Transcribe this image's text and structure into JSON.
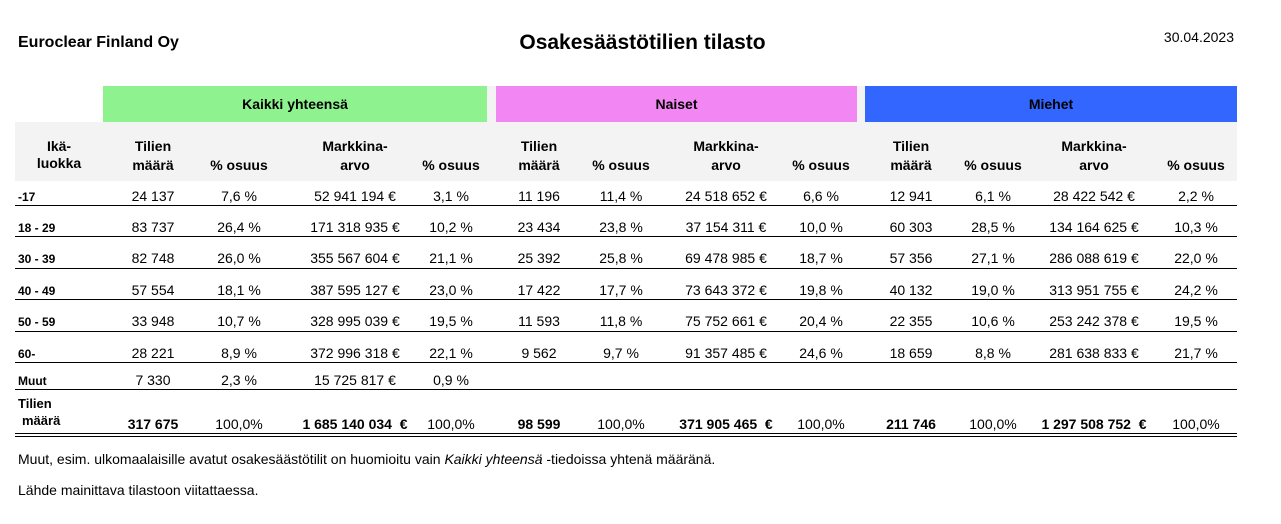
{
  "header": {
    "company": "Euroclear Finland Oy",
    "title": "Osakesäästötilien tilasto",
    "date": "30.04.2023"
  },
  "groups": {
    "all": "Kaikki yhteensä",
    "women": "Naiset",
    "men": "Miehet"
  },
  "colors": {
    "all": "#8ef28e",
    "women": "#f286f2",
    "men": "#3366ff"
  },
  "columns": {
    "age_line1": "Ikä-",
    "age_line2": "luokka",
    "count_line1": "Tilien",
    "count_line2": "määrä",
    "share": "% osuus",
    "market_line1": "Markkina-",
    "market_line2": "arvo"
  },
  "rows": [
    {
      "label": "-17",
      "c": [
        "24 137",
        "7,6 %",
        "52 941 194 €",
        "3,1 %",
        "11 196",
        "11,4 %",
        "24 518 652 €",
        "6,6 %",
        "12 941",
        "6,1 %",
        "28 422 542 €",
        "2,2 %"
      ]
    },
    {
      "label": "18 - 29",
      "c": [
        "83 737",
        "26,4 %",
        "171 318 935 €",
        "10,2 %",
        "23 434",
        "23,8 %",
        "37 154 311 €",
        "10,0 %",
        "60 303",
        "28,5 %",
        "134 164 625 €",
        "10,3 %"
      ]
    },
    {
      "label": "30 - 39",
      "c": [
        "82 748",
        "26,0 %",
        "355 567 604 €",
        "21,1 %",
        "25 392",
        "25,8 %",
        "69 478 985 €",
        "18,7 %",
        "57 356",
        "27,1 %",
        "286 088 619 €",
        "22,0 %"
      ]
    },
    {
      "label": "40 - 49",
      "c": [
        "57 554",
        "18,1 %",
        "387 595 127 €",
        "23,0 %",
        "17 422",
        "17,7 %",
        "73 643 372 €",
        "19,8 %",
        "40 132",
        "19,0 %",
        "313 951 755 €",
        "24,2 %"
      ]
    },
    {
      "label": "50 - 59",
      "c": [
        "33 948",
        "10,7 %",
        "328 995 039 €",
        "19,5 %",
        "11 593",
        "11,8 %",
        "75 752 661 €",
        "20,4 %",
        "22 355",
        "10,6 %",
        "253 242 378 €",
        "19,5 %"
      ]
    },
    {
      "label": "60-",
      "c": [
        "28 221",
        "8,9 %",
        "372 996 318 €",
        "22,1 %",
        "9 562",
        "9,7 %",
        "91 357 485 €",
        "24,6 %",
        "18 659",
        "8,8 %",
        "281 638 833 €",
        "21,7 %"
      ]
    },
    {
      "label": "Muut",
      "c": [
        "7 330",
        "2,3 %",
        "15 725 817 €",
        "0,9 %",
        "",
        "",
        "",
        "",
        "",
        "",
        "",
        ""
      ]
    }
  ],
  "total": {
    "label_line1": "Tilien",
    "label_line2": "määrä",
    "c": [
      "317 675",
      "100,0%",
      "1 685 140 034  €",
      "100,0%",
      "98 599",
      "100,0%",
      "371 905 465  €",
      "100,0%",
      "211 746",
      "100,0%",
      "1 297 508 752  €",
      "100,0%"
    ]
  },
  "notes": {
    "note1_pre": "Muut, esim. ulkomaalaisille avatut osakesäästötilit on huomioitu vain ",
    "note1_italic": "Kaikki yhteensä",
    "note1_post": " -tiedoissa yhtenä määränä.",
    "note2": "Lähde mainittava tilastoon viitattaessa."
  }
}
